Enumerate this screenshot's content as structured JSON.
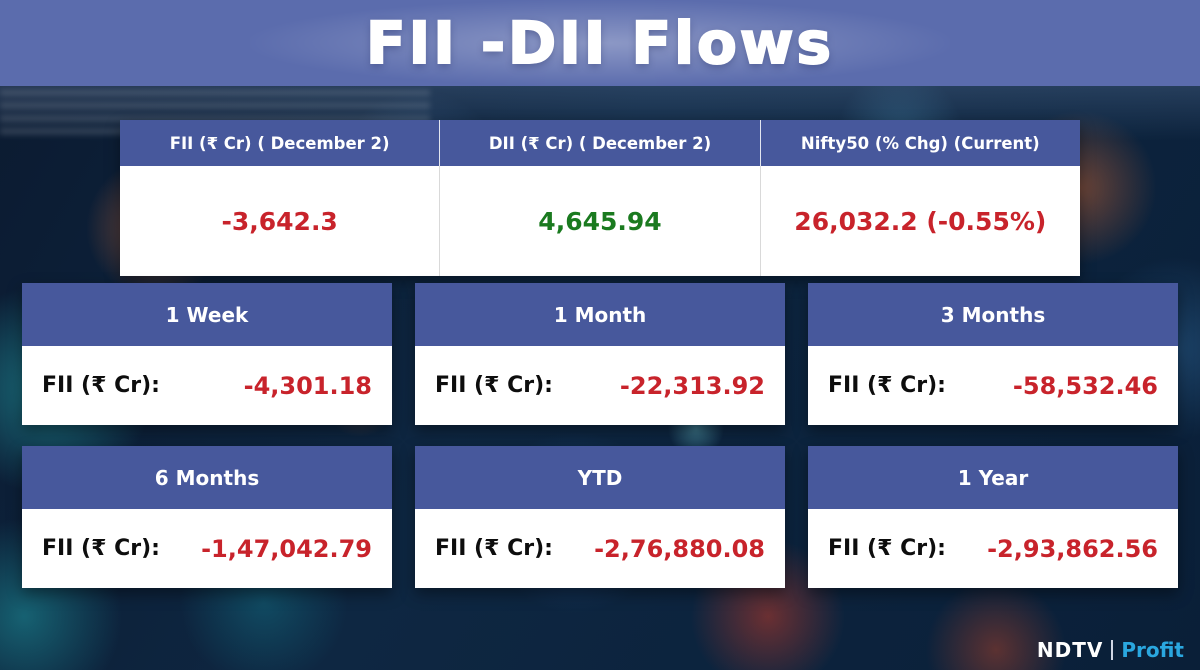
{
  "title": "FII -DII Flows",
  "colors": {
    "banner_blue": "#5b6cad",
    "header_blue": "#47589c",
    "negative_red": "#c8232b",
    "positive_green": "#1a7a1f",
    "profit_blue": "#2aa7df"
  },
  "summary": {
    "columns": [
      {
        "header": "FII (₹ Cr) ( December 2)",
        "value": "-3,642.3",
        "value_color": "#c8232b"
      },
      {
        "header": "DII (₹ Cr) ( December 2)",
        "value": "4,645.94",
        "value_color": "#1a7a1f"
      },
      {
        "header": "Nifty50 (% Chg) (Current)",
        "value": "26,032.2 (-0.55%)",
        "value_color": "#c8232b"
      }
    ]
  },
  "periods": [
    {
      "period": "1 Week",
      "label": "FII (₹ Cr):",
      "value": "-4,301.18",
      "value_color": "#c8232b"
    },
    {
      "period": "1 Month",
      "label": "FII (₹ Cr):",
      "value": "-22,313.92",
      "value_color": "#c8232b"
    },
    {
      "period": "3 Months",
      "label": "FII (₹ Cr):",
      "value": "-58,532.46",
      "value_color": "#c8232b"
    },
    {
      "period": "6 Months",
      "label": "FII (₹ Cr):",
      "value": "-1,47,042.79",
      "value_color": "#c8232b"
    },
    {
      "period": "YTD",
      "label": "FII (₹ Cr):",
      "value": "-2,76,880.08",
      "value_color": "#c8232b"
    },
    {
      "period": "1 Year",
      "label": "FII (₹ Cr):",
      "value": "-2,93,862.56",
      "value_color": "#c8232b"
    }
  ],
  "logo": {
    "ndtv": "NDTV",
    "divider": "|",
    "profit": "Profit"
  },
  "chart_data": {
    "type": "table",
    "title": "FII -DII Flows",
    "summary_table": {
      "columns": [
        "FII (₹ Cr) ( December 2)",
        "DII (₹ Cr) ( December 2)",
        "Nifty50 (% Chg) (Current)"
      ],
      "values": [
        "-3,642.3",
        "4,645.94",
        "26,032.2 (-0.55%)"
      ]
    },
    "fii_flows_by_period": {
      "categories": [
        "1 Week",
        "1 Month",
        "3 Months",
        "6 Months",
        "YTD",
        "1 Year"
      ],
      "values_rs_cr": [
        -4301.18,
        -22313.92,
        -58532.46,
        -147042.79,
        -276880.08,
        -293862.56
      ],
      "unit": "₹ Cr"
    }
  }
}
